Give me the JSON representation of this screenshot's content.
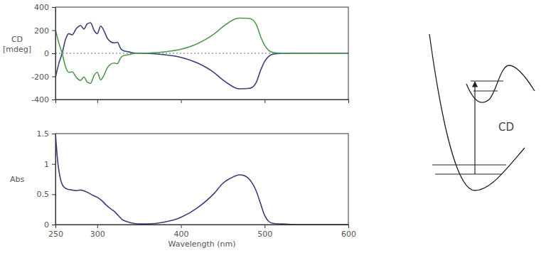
{
  "chart_data": [
    {
      "type": "line",
      "ylabel": "CD [mdeg]",
      "x": [
        250,
        254,
        258,
        262,
        266,
        270,
        275,
        280,
        284,
        288,
        292,
        296,
        300,
        304,
        308,
        312,
        316,
        320,
        324,
        328,
        332,
        336,
        340,
        345,
        350,
        360,
        380,
        400,
        420,
        440,
        450,
        460,
        465,
        470,
        480,
        485,
        490,
        495,
        500,
        505,
        510,
        520,
        540,
        600
      ],
      "series": [
        {
          "color": "#3b3f7c",
          "values": [
            -210,
            -90,
            0,
            120,
            170,
            160,
            215,
            240,
            210,
            255,
            265,
            200,
            170,
            235,
            195,
            130,
            100,
            90,
            95,
            40,
            20,
            15,
            8,
            2,
            0,
            -2,
            -12,
            -35,
            -85,
            -170,
            -230,
            -280,
            -300,
            -308,
            -305,
            -295,
            -250,
            -150,
            -70,
            -25,
            -8,
            -1,
            0,
            0
          ]
        },
        {
          "color": "#4f9a4f",
          "values": [
            205,
            90,
            0,
            -115,
            -165,
            -160,
            -210,
            -235,
            -205,
            -250,
            -260,
            -195,
            -165,
            -230,
            -190,
            -125,
            -95,
            -85,
            -90,
            -38,
            -18,
            -14,
            -7,
            -2,
            0,
            2,
            12,
            35,
            85,
            170,
            230,
            280,
            298,
            305,
            303,
            293,
            248,
            148,
            68,
            24,
            8,
            1,
            0,
            0
          ]
        }
      ],
      "xlim": [
        250,
        600
      ],
      "xticks": [
        250,
        300,
        400,
        500,
        600
      ],
      "ylim": [
        -400,
        400
      ],
      "yticks": [
        -400,
        -200,
        0,
        200,
        400
      ],
      "tick_labels": "y",
      "grid": false
    },
    {
      "type": "line",
      "ylabel": "Abs",
      "xlabel": "Wavelength (nm)",
      "x": [
        250,
        253,
        256,
        260,
        265,
        270,
        275,
        280,
        285,
        290,
        295,
        300,
        305,
        310,
        315,
        320,
        325,
        330,
        335,
        340,
        350,
        360,
        380,
        400,
        420,
        440,
        450,
        460,
        470,
        475,
        480,
        490,
        495,
        500,
        505,
        510,
        520,
        540,
        600
      ],
      "values": [
        1.5,
        1.0,
        0.75,
        0.62,
        0.58,
        0.57,
        0.56,
        0.57,
        0.55,
        0.52,
        0.48,
        0.45,
        0.4,
        0.33,
        0.27,
        0.22,
        0.15,
        0.08,
        0.05,
        0.03,
        0.01,
        0.01,
        0.04,
        0.12,
        0.28,
        0.52,
        0.68,
        0.77,
        0.82,
        0.81,
        0.77,
        0.55,
        0.35,
        0.15,
        0.05,
        0.02,
        0.01,
        0,
        0
      ],
      "color": "#3b3f7c",
      "xlim": [
        250,
        600
      ],
      "xticks": [
        250,
        300,
        400,
        500,
        600
      ],
      "ylim": [
        0,
        1.5
      ],
      "yticks": [
        0,
        0.5,
        1,
        1.5
      ],
      "tick_labels": true,
      "grid": false
    }
  ],
  "diagram": {
    "label": "CD"
  }
}
